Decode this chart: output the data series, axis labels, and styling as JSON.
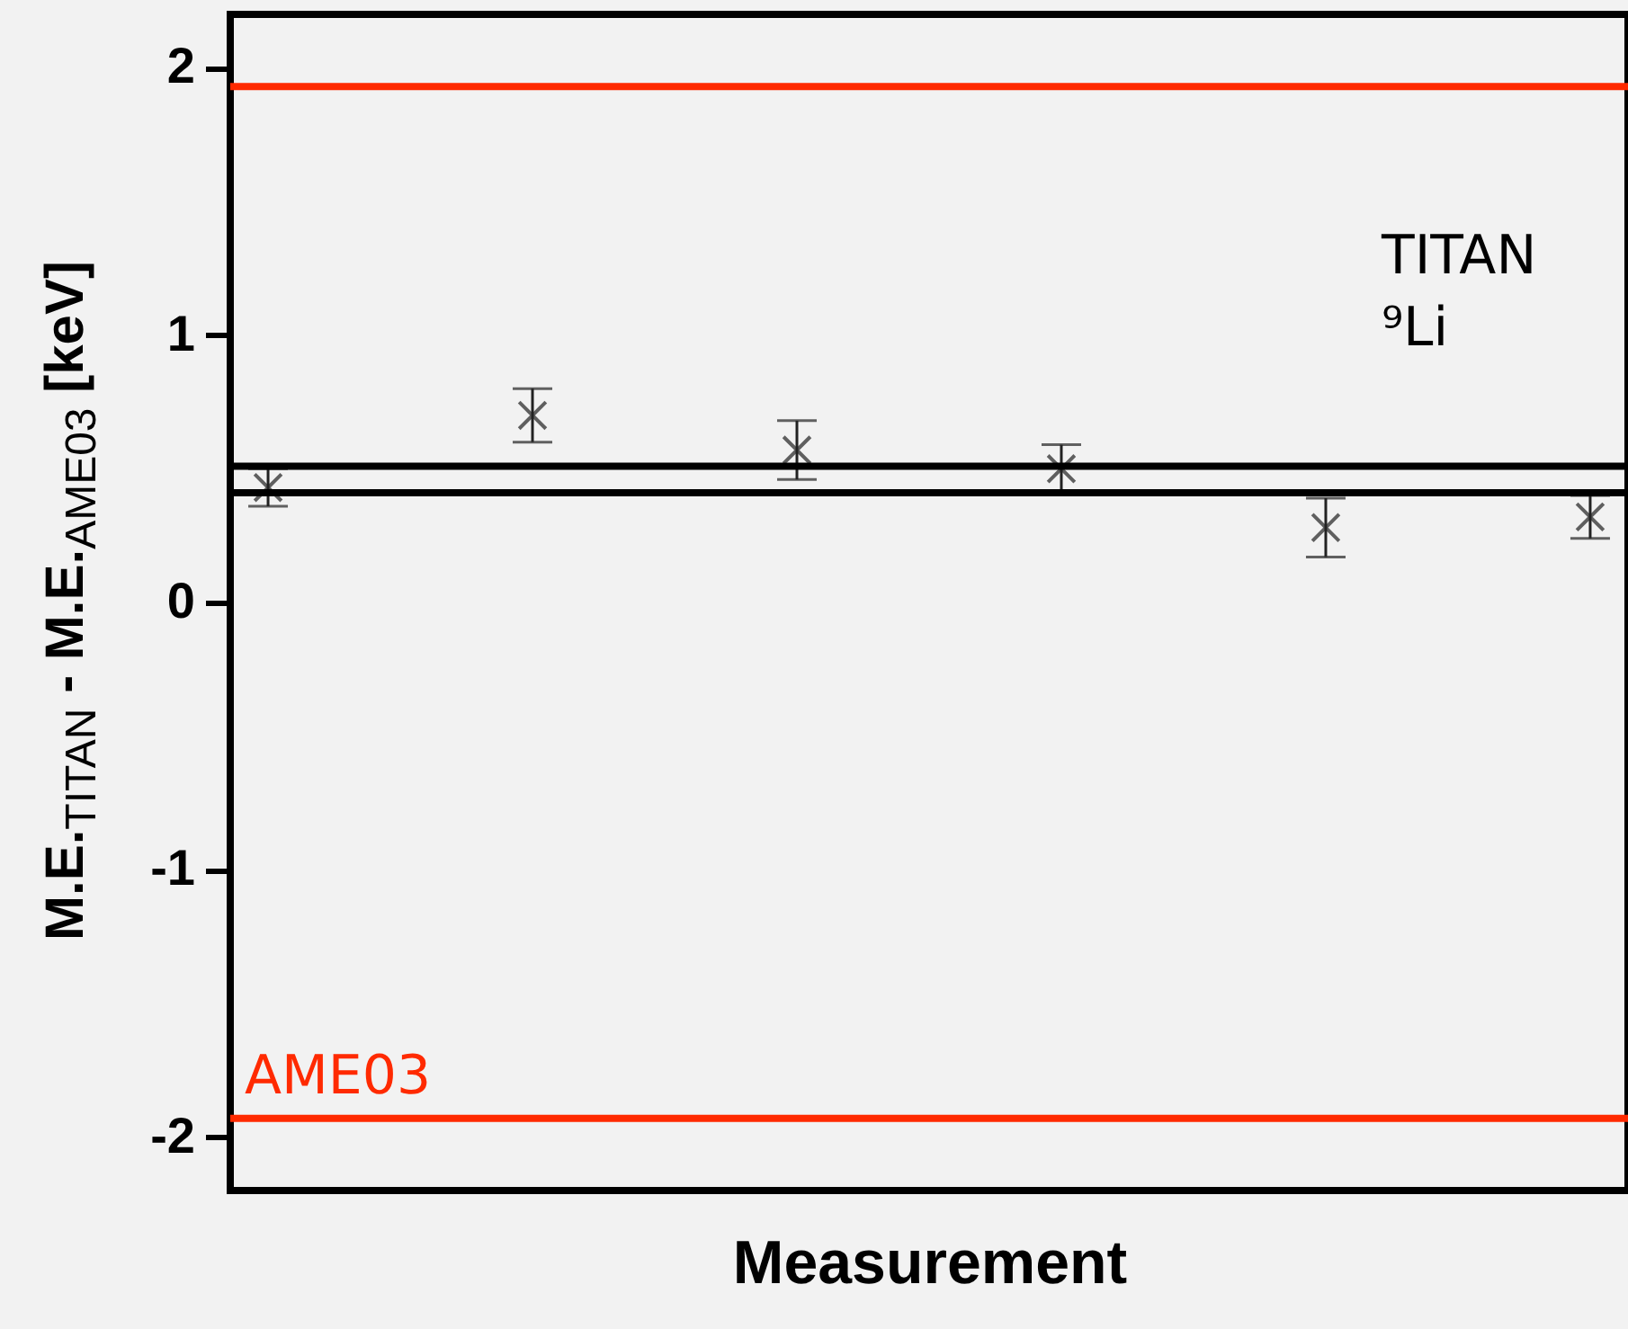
{
  "chart_data": {
    "type": "scatter",
    "xlabel": "Measurement",
    "ylabel": "M.E.$_{TITAN}$ - M.E.$_{AME03}$ [keV]",
    "categories": [
      null,
      null,
      null,
      null,
      null,
      null
    ],
    "series": [
      {
        "color": "#222222",
        "values": [
          0.43,
          0.7,
          0.57,
          0.5,
          0.28,
          0.32
        ],
        "errors": [
          0.07,
          0.1,
          0.11,
          0.09,
          0.11,
          0.08
        ]
      }
    ],
    "marker": "cross",
    "ylim": [
      -2.2,
      2.2
    ],
    "yticks": [
      -2,
      -1,
      0,
      1,
      2
    ],
    "tick_labels": "y",
    "ref_lines": [
      {
        "axis": "y",
        "value": 1.93,
        "color": "#ff2a00"
      },
      {
        "axis": "y",
        "value": -1.93,
        "label": "AME03",
        "color": "#ff2a00"
      },
      {
        "axis": "y",
        "value": 0.51,
        "color": "#000000"
      },
      {
        "axis": "y",
        "value": 0.41,
        "color": "#000000"
      }
    ],
    "annotations": [
      "TITAN",
      "⁹Li"
    ]
  }
}
